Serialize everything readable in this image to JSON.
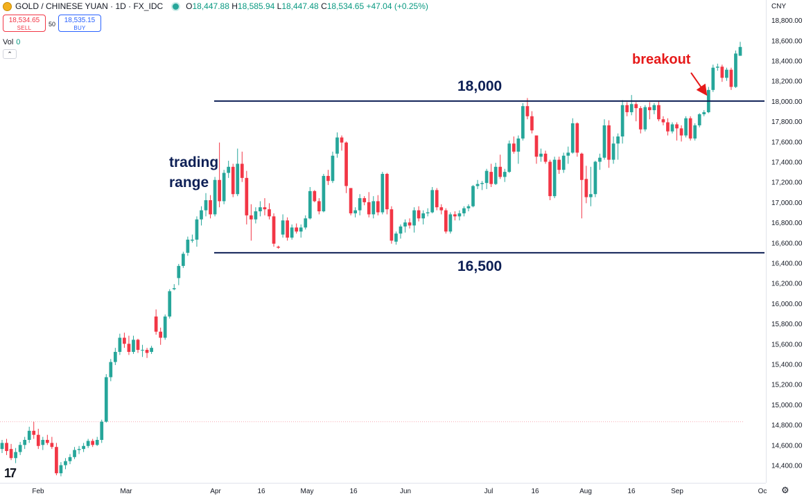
{
  "header": {
    "symbol": "GOLD / CHINESE YUAN · 1D · FX_IDC",
    "open_key": "O",
    "open": "18,447.88",
    "high_key": "H",
    "high": "18,585.94",
    "low_key": "L",
    "low": "18,447.48",
    "close_key": "C",
    "close": "18,534.65",
    "change": "+47.04 (+0.25%)"
  },
  "trade": {
    "sell_price": "18,534.65",
    "sell_label": "SELL",
    "spread": "50",
    "buy_price": "18,535.15",
    "buy_label": "BUY"
  },
  "volume": {
    "label": "Vol",
    "value": "0"
  },
  "axis": {
    "currency": "CNY"
  },
  "annotations": {
    "range_line1": "trading",
    "range_line2": "range",
    "top_level": "18,000",
    "bottom_level": "16,500",
    "breakout": "breakout"
  },
  "colors": {
    "up": "#26a69a",
    "down": "#f23645",
    "level": "#0d1f55",
    "annotation_red": "#e61919"
  },
  "chart_data": {
    "type": "candlestick",
    "y_ticks": [
      14400,
      14600,
      14800,
      15000,
      15200,
      15400,
      15600,
      15800,
      16000,
      16200,
      16400,
      16600,
      16800,
      17000,
      17200,
      17400,
      17600,
      17800,
      18000,
      18200,
      18400,
      18600,
      18800
    ],
    "y_tick_labels": [
      "14,400.00",
      "14,600.00",
      "14,800.00",
      "15,000.00",
      "15,200.00",
      "15,400.00",
      "15,600.00",
      "15,800.00",
      "16,000.00",
      "16,200.00",
      "16,400.00",
      "16,600.00",
      "16,800.00",
      "17,000.00",
      "17,200.00",
      "17,400.00",
      "17,600.00",
      "17,800.00",
      "18,000.00",
      "18,200.00",
      "18,400.00",
      "18,600.00",
      "18,800.00"
    ],
    "ylim": [
      14310,
      18870
    ],
    "x_ticks": [
      "Feb",
      "Mar",
      "Apr",
      "16",
      "May",
      "16",
      "Jun",
      "Jul",
      "16",
      "Aug",
      "16",
      "Sep",
      "Oc"
    ],
    "x_tick_dates": [
      "2024-02-01",
      "2024-03-01",
      "2024-04-01",
      "2024-04-16",
      "2024-05-01",
      "2024-05-16",
      "2024-06-01",
      "2024-07-01",
      "2024-07-16",
      "2024-08-01",
      "2024-08-16",
      "2024-09-01",
      "2024-10-01"
    ],
    "horizontal_levels": [
      18000,
      16500
    ],
    "reference_line": 14830,
    "candles": [
      {
        "o": 14560,
        "h": 14650,
        "l": 14520,
        "c": 14620
      },
      {
        "o": 14620,
        "h": 14660,
        "l": 14500,
        "c": 14540
      },
      {
        "o": 14560,
        "h": 14610,
        "l": 14450,
        "c": 14470
      },
      {
        "o": 14470,
        "h": 14570,
        "l": 14420,
        "c": 14530
      },
      {
        "o": 14530,
        "h": 14630,
        "l": 14500,
        "c": 14600
      },
      {
        "o": 14600,
        "h": 14680,
        "l": 14560,
        "c": 14650
      },
      {
        "o": 14650,
        "h": 14780,
        "l": 14620,
        "c": 14740
      },
      {
        "o": 14740,
        "h": 14830,
        "l": 14660,
        "c": 14700
      },
      {
        "o": 14700,
        "h": 14760,
        "l": 14560,
        "c": 14590
      },
      {
        "o": 14600,
        "h": 14680,
        "l": 14550,
        "c": 14650
      },
      {
        "o": 14650,
        "h": 14700,
        "l": 14600,
        "c": 14620
      },
      {
        "o": 14620,
        "h": 14680,
        "l": 14560,
        "c": 14580
      },
      {
        "o": 14580,
        "h": 14620,
        "l": 14300,
        "c": 14320
      },
      {
        "o": 14320,
        "h": 14430,
        "l": 14290,
        "c": 14400
      },
      {
        "o": 14400,
        "h": 14470,
        "l": 14360,
        "c": 14440
      },
      {
        "o": 14440,
        "h": 14510,
        "l": 14410,
        "c": 14480
      },
      {
        "o": 14480,
        "h": 14580,
        "l": 14460,
        "c": 14550
      },
      {
        "o": 14550,
        "h": 14590,
        "l": 14510,
        "c": 14560
      },
      {
        "o": 14560,
        "h": 14620,
        "l": 14530,
        "c": 14590
      },
      {
        "o": 14590,
        "h": 14660,
        "l": 14570,
        "c": 14640
      },
      {
        "o": 14640,
        "h": 14660,
        "l": 14580,
        "c": 14600
      },
      {
        "o": 14600,
        "h": 14680,
        "l": 14590,
        "c": 14650
      },
      {
        "o": 14650,
        "h": 14850,
        "l": 14620,
        "c": 14830
      },
      {
        "o": 14830,
        "h": 15300,
        "l": 14820,
        "c": 15270
      },
      {
        "o": 15270,
        "h": 15450,
        "l": 15230,
        "c": 15420
      },
      {
        "o": 15420,
        "h": 15560,
        "l": 15390,
        "c": 15520
      },
      {
        "o": 15520,
        "h": 15700,
        "l": 15490,
        "c": 15660
      },
      {
        "o": 15660,
        "h": 15710,
        "l": 15560,
        "c": 15600
      },
      {
        "o": 15600,
        "h": 15680,
        "l": 15490,
        "c": 15520
      },
      {
        "o": 15520,
        "h": 15680,
        "l": 15500,
        "c": 15640
      },
      {
        "o": 15640,
        "h": 15650,
        "l": 15510,
        "c": 15540
      },
      {
        "o": 15540,
        "h": 15590,
        "l": 15470,
        "c": 15540
      },
      {
        "o": 15540,
        "h": 15560,
        "l": 15460,
        "c": 15510
      },
      {
        "o": 15520,
        "h": 15580,
        "l": 15500,
        "c": 15560
      },
      {
        "o": 15870,
        "h": 15940,
        "l": 15690,
        "c": 15720
      },
      {
        "o": 15720,
        "h": 15760,
        "l": 15590,
        "c": 15660
      },
      {
        "o": 15660,
        "h": 15890,
        "l": 15640,
        "c": 15870
      },
      {
        "o": 15870,
        "h": 16140,
        "l": 15850,
        "c": 16120
      },
      {
        "o": 16140,
        "h": 16190,
        "l": 16130,
        "c": 16150
      },
      {
        "o": 16250,
        "h": 16390,
        "l": 16180,
        "c": 16370
      },
      {
        "o": 16370,
        "h": 16510,
        "l": 16350,
        "c": 16490
      },
      {
        "o": 16500,
        "h": 16660,
        "l": 16470,
        "c": 16630
      },
      {
        "o": 16620,
        "h": 16680,
        "l": 16600,
        "c": 16630
      },
      {
        "o": 16630,
        "h": 16860,
        "l": 16560,
        "c": 16830
      },
      {
        "o": 16830,
        "h": 16960,
        "l": 16770,
        "c": 16920
      },
      {
        "o": 16920,
        "h": 17090,
        "l": 16860,
        "c": 17020
      },
      {
        "o": 17020,
        "h": 17070,
        "l": 16840,
        "c": 16880
      },
      {
        "o": 16880,
        "h": 17250,
        "l": 16860,
        "c": 17220
      },
      {
        "o": 17220,
        "h": 17590,
        "l": 16950,
        "c": 17010
      },
      {
        "o": 17010,
        "h": 17320,
        "l": 16980,
        "c": 17290
      },
      {
        "o": 17290,
        "h": 17410,
        "l": 17240,
        "c": 17350
      },
      {
        "o": 17350,
        "h": 17380,
        "l": 17050,
        "c": 17080
      },
      {
        "o": 17080,
        "h": 17530,
        "l": 17060,
        "c": 17380
      },
      {
        "o": 17380,
        "h": 17500,
        "l": 17200,
        "c": 17240
      },
      {
        "o": 17240,
        "h": 17310,
        "l": 16780,
        "c": 16870
      },
      {
        "o": 16870,
        "h": 16980,
        "l": 16620,
        "c": 16830
      },
      {
        "o": 16830,
        "h": 16950,
        "l": 16790,
        "c": 16910
      },
      {
        "o": 16910,
        "h": 17010,
        "l": 16860,
        "c": 16950
      },
      {
        "o": 16950,
        "h": 17040,
        "l": 16870,
        "c": 16930
      },
      {
        "o": 16930,
        "h": 16990,
        "l": 16830,
        "c": 16860
      },
      {
        "o": 16860,
        "h": 16890,
        "l": 16560,
        "c": 16590
      },
      {
        "o": 16560,
        "h": 16570,
        "l": 16540,
        "c": 16550
      },
      {
        "o": 16680,
        "h": 16880,
        "l": 16650,
        "c": 16820
      },
      {
        "o": 16820,
        "h": 16850,
        "l": 16620,
        "c": 16650
      },
      {
        "o": 16650,
        "h": 16780,
        "l": 16630,
        "c": 16750
      },
      {
        "o": 16750,
        "h": 16790,
        "l": 16690,
        "c": 16710
      },
      {
        "o": 16710,
        "h": 16780,
        "l": 16650,
        "c": 16750
      },
      {
        "o": 16750,
        "h": 16870,
        "l": 16730,
        "c": 16840
      },
      {
        "o": 16840,
        "h": 17150,
        "l": 16830,
        "c": 17110
      },
      {
        "o": 17110,
        "h": 17120,
        "l": 17000,
        "c": 17010
      },
      {
        "o": 17010,
        "h": 17040,
        "l": 16880,
        "c": 16910
      },
      {
        "o": 16910,
        "h": 17280,
        "l": 16900,
        "c": 17260
      },
      {
        "o": 17260,
        "h": 17320,
        "l": 17170,
        "c": 17210
      },
      {
        "o": 17210,
        "h": 17500,
        "l": 17190,
        "c": 17460
      },
      {
        "o": 17480,
        "h": 17690,
        "l": 17440,
        "c": 17640
      },
      {
        "o": 17640,
        "h": 17660,
        "l": 17510,
        "c": 17590
      },
      {
        "o": 17590,
        "h": 17600,
        "l": 17090,
        "c": 17160
      },
      {
        "o": 17140,
        "h": 17120,
        "l": 16870,
        "c": 16890
      },
      {
        "o": 16890,
        "h": 16950,
        "l": 16850,
        "c": 16920
      },
      {
        "o": 16920,
        "h": 17080,
        "l": 16870,
        "c": 17040
      },
      {
        "o": 17040,
        "h": 17060,
        "l": 16970,
        "c": 17000
      },
      {
        "o": 17000,
        "h": 17100,
        "l": 16850,
        "c": 16880
      },
      {
        "o": 16880,
        "h": 17060,
        "l": 16840,
        "c": 17010
      },
      {
        "o": 17010,
        "h": 17070,
        "l": 16870,
        "c": 16900
      },
      {
        "o": 16900,
        "h": 17300,
        "l": 16880,
        "c": 17280
      },
      {
        "o": 17280,
        "h": 17290,
        "l": 16880,
        "c": 16930
      },
      {
        "o": 16930,
        "h": 16960,
        "l": 16590,
        "c": 16620
      },
      {
        "o": 16610,
        "h": 16710,
        "l": 16580,
        "c": 16690
      },
      {
        "o": 16690,
        "h": 16780,
        "l": 16640,
        "c": 16760
      },
      {
        "o": 16760,
        "h": 16830,
        "l": 16700,
        "c": 16800
      },
      {
        "o": 16800,
        "h": 16840,
        "l": 16740,
        "c": 16770
      },
      {
        "o": 16770,
        "h": 16950,
        "l": 16700,
        "c": 16920
      },
      {
        "o": 16920,
        "h": 16960,
        "l": 16810,
        "c": 16840
      },
      {
        "o": 16840,
        "h": 16920,
        "l": 16780,
        "c": 16890
      },
      {
        "o": 16890,
        "h": 16940,
        "l": 16860,
        "c": 16900
      },
      {
        "o": 16900,
        "h": 17150,
        "l": 16890,
        "c": 17120
      },
      {
        "o": 17120,
        "h": 17140,
        "l": 16920,
        "c": 16950
      },
      {
        "o": 16950,
        "h": 16980,
        "l": 16880,
        "c": 16920
      },
      {
        "o": 16920,
        "h": 16940,
        "l": 16690,
        "c": 16710
      },
      {
        "o": 16710,
        "h": 16900,
        "l": 16690,
        "c": 16880
      },
      {
        "o": 16880,
        "h": 16910,
        "l": 16820,
        "c": 16860
      },
      {
        "o": 16860,
        "h": 16920,
        "l": 16820,
        "c": 16890
      },
      {
        "o": 16890,
        "h": 16960,
        "l": 16860,
        "c": 16940
      },
      {
        "o": 16940,
        "h": 16980,
        "l": 16910,
        "c": 16960
      },
      {
        "o": 16960,
        "h": 17170,
        "l": 16950,
        "c": 17160
      },
      {
        "o": 17160,
        "h": 17220,
        "l": 17130,
        "c": 17180
      },
      {
        "o": 17180,
        "h": 17210,
        "l": 17120,
        "c": 17190
      },
      {
        "o": 17190,
        "h": 17330,
        "l": 17130,
        "c": 17310
      },
      {
        "o": 17300,
        "h": 17380,
        "l": 17150,
        "c": 17180
      },
      {
        "o": 17180,
        "h": 17390,
        "l": 17170,
        "c": 17350
      },
      {
        "o": 17350,
        "h": 17470,
        "l": 17230,
        "c": 17250
      },
      {
        "o": 17250,
        "h": 17330,
        "l": 17200,
        "c": 17300
      },
      {
        "o": 17300,
        "h": 17610,
        "l": 17290,
        "c": 17580
      },
      {
        "o": 17580,
        "h": 17650,
        "l": 17480,
        "c": 17500
      },
      {
        "o": 17500,
        "h": 17660,
        "l": 17380,
        "c": 17630
      },
      {
        "o": 17630,
        "h": 17980,
        "l": 17610,
        "c": 17950
      },
      {
        "o": 17950,
        "h": 18030,
        "l": 17820,
        "c": 17850
      },
      {
        "o": 17850,
        "h": 17900,
        "l": 17680,
        "c": 17710
      },
      {
        "o": 17660,
        "h": 17650,
        "l": 17380,
        "c": 17450
      },
      {
        "o": 17450,
        "h": 17530,
        "l": 17400,
        "c": 17480
      },
      {
        "o": 17480,
        "h": 17510,
        "l": 17380,
        "c": 17400
      },
      {
        "o": 17400,
        "h": 17420,
        "l": 17020,
        "c": 17060
      },
      {
        "o": 17060,
        "h": 17450,
        "l": 17040,
        "c": 17420
      },
      {
        "o": 17420,
        "h": 17450,
        "l": 17280,
        "c": 17320
      },
      {
        "o": 17320,
        "h": 17490,
        "l": 17290,
        "c": 17460
      },
      {
        "o": 17460,
        "h": 17550,
        "l": 17380,
        "c": 17490
      },
      {
        "o": 17490,
        "h": 17830,
        "l": 17480,
        "c": 17780
      },
      {
        "o": 17780,
        "h": 17790,
        "l": 17450,
        "c": 17490
      },
      {
        "o": 17480,
        "h": 17490,
        "l": 16840,
        "c": 17220
      },
      {
        "o": 17230,
        "h": 17360,
        "l": 16990,
        "c": 17050
      },
      {
        "o": 17050,
        "h": 17350,
        "l": 16960,
        "c": 17080
      },
      {
        "o": 17080,
        "h": 17410,
        "l": 17050,
        "c": 17400
      },
      {
        "o": 17400,
        "h": 17480,
        "l": 17320,
        "c": 17440
      },
      {
        "o": 17440,
        "h": 17820,
        "l": 17420,
        "c": 17760
      },
      {
        "o": 17760,
        "h": 17810,
        "l": 17340,
        "c": 17420
      },
      {
        "o": 17420,
        "h": 17650,
        "l": 17380,
        "c": 17580
      },
      {
        "o": 17580,
        "h": 17680,
        "l": 17420,
        "c": 17650
      },
      {
        "o": 17650,
        "h": 18010,
        "l": 17580,
        "c": 17960
      },
      {
        "o": 17960,
        "h": 17990,
        "l": 17850,
        "c": 17890
      },
      {
        "o": 17890,
        "h": 18060,
        "l": 17860,
        "c": 17970
      },
      {
        "o": 17970,
        "h": 17990,
        "l": 17800,
        "c": 17930
      },
      {
        "o": 17930,
        "h": 17950,
        "l": 17680,
        "c": 17720
      },
      {
        "o": 17720,
        "h": 17960,
        "l": 17700,
        "c": 17940
      },
      {
        "o": 17940,
        "h": 17990,
        "l": 17820,
        "c": 17910
      },
      {
        "o": 17910,
        "h": 17980,
        "l": 17870,
        "c": 17960
      },
      {
        "o": 17960,
        "h": 18000,
        "l": 17800,
        "c": 17820
      },
      {
        "o": 17820,
        "h": 17850,
        "l": 17760,
        "c": 17790
      },
      {
        "o": 17790,
        "h": 17830,
        "l": 17660,
        "c": 17700
      },
      {
        "o": 17700,
        "h": 17790,
        "l": 17680,
        "c": 17770
      },
      {
        "o": 17770,
        "h": 17790,
        "l": 17610,
        "c": 17730
      },
      {
        "o": 17730,
        "h": 17760,
        "l": 17600,
        "c": 17660
      },
      {
        "o": 17660,
        "h": 17850,
        "l": 17640,
        "c": 17830
      },
      {
        "o": 17830,
        "h": 17850,
        "l": 17610,
        "c": 17630
      },
      {
        "o": 17630,
        "h": 17780,
        "l": 17610,
        "c": 17760
      },
      {
        "o": 17760,
        "h": 17880,
        "l": 17740,
        "c": 17870
      },
      {
        "o": 17870,
        "h": 17910,
        "l": 17850,
        "c": 17890
      },
      {
        "o": 17890,
        "h": 18140,
        "l": 17880,
        "c": 18110
      },
      {
        "o": 18110,
        "h": 18360,
        "l": 18090,
        "c": 18330
      },
      {
        "o": 18330,
        "h": 18370,
        "l": 18300,
        "c": 18340
      },
      {
        "o": 18340,
        "h": 18360,
        "l": 18190,
        "c": 18230
      },
      {
        "o": 18230,
        "h": 18330,
        "l": 18200,
        "c": 18310
      },
      {
        "o": 18310,
        "h": 18330,
        "l": 18110,
        "c": 18140
      },
      {
        "o": 18140,
        "h": 18500,
        "l": 18130,
        "c": 18470
      },
      {
        "o": 18448,
        "h": 18586,
        "l": 18447,
        "c": 18535
      }
    ]
  }
}
